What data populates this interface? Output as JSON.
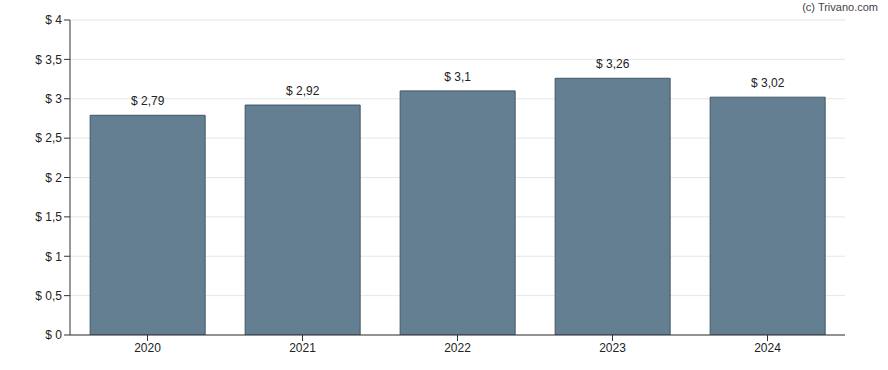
{
  "chart_data": {
    "type": "bar",
    "categories": [
      "2020",
      "2021",
      "2022",
      "2023",
      "2024"
    ],
    "values": [
      2.79,
      2.92,
      3.1,
      3.26,
      3.02
    ],
    "value_labels": [
      "$ 2,79",
      "$ 2,92",
      "$ 3,1",
      "$ 3,26",
      "$ 3,02"
    ],
    "data_labels": true,
    "color": "#647f91",
    "ylim": [
      0,
      4
    ],
    "yticks": [
      {
        "value": 0,
        "label": "$ 0"
      },
      {
        "value": 0.5,
        "label": "$ 0,5"
      },
      {
        "value": 1,
        "label": "$ 1"
      },
      {
        "value": 1.5,
        "label": "$ 1,5"
      },
      {
        "value": 2,
        "label": "$ 2"
      },
      {
        "value": 2.5,
        "label": "$ 2,5"
      },
      {
        "value": 3,
        "label": "$ 3"
      },
      {
        "value": 3.5,
        "label": "$ 3,5"
      },
      {
        "value": 4,
        "label": "$ 4"
      }
    ],
    "grid": true,
    "annotations": [
      "(c) Trivano.com"
    ]
  }
}
